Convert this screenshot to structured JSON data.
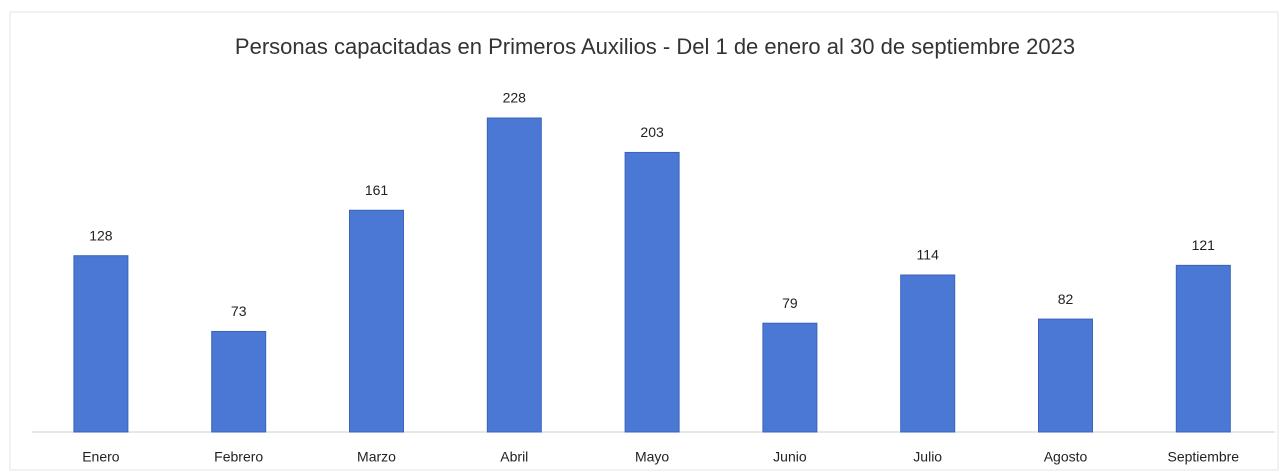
{
  "chart_data": {
    "type": "bar",
    "title": "Personas capacitadas en Primeros Auxilios -  Del 1 de enero al 30 de septiembre 2023",
    "categories": [
      "Enero",
      "Febrero",
      "Marzo",
      "Abril",
      "Mayo",
      "Junio",
      "Julio",
      "Agosto",
      "Septiembre"
    ],
    "values": [
      128,
      73,
      161,
      228,
      203,
      79,
      114,
      82,
      121
    ],
    "color": "#4a78d4"
  }
}
